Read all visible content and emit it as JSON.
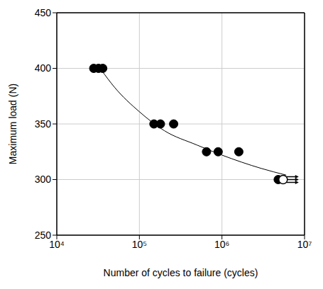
{
  "chart_data": {
    "type": "scatter",
    "xlabel": "Number of cycles to failure (cycles)",
    "ylabel": "Maximum load (N)",
    "log": "x",
    "grid": true,
    "xlim": [
      10000,
      10000000
    ],
    "xticks": [
      {
        "value": 10000,
        "label": "10⁴"
      },
      {
        "value": 100000,
        "label": "10⁵"
      },
      {
        "value": 1000000,
        "label": "10⁶"
      },
      {
        "value": 10000000,
        "label": "10⁷"
      }
    ],
    "ylim": [
      250,
      450
    ],
    "yticks": [
      250,
      300,
      350,
      400,
      450
    ],
    "series": [
      {
        "type": "scatter",
        "marker": "circle",
        "color": "#000000",
        "x": [
          28000,
          32000,
          36000,
          150000,
          180000,
          260000,
          650000,
          900000,
          1600000,
          4800000
        ],
        "values": [
          400,
          400,
          400,
          350,
          350,
          350,
          325,
          325,
          325,
          300
        ]
      },
      {
        "type": "scatter",
        "marker": "runout",
        "color": "#000000",
        "x": [
          5500000
        ],
        "values": [
          300
        ]
      },
      {
        "type": "line",
        "line_style": "solid",
        "color": "#000000",
        "x": [
          35000,
          50000,
          100000,
          200000,
          500000,
          1000000,
          3000000,
          6000000
        ],
        "values": [
          398,
          383,
          361,
          344,
          331,
          322,
          310,
          304
        ]
      }
    ]
  }
}
